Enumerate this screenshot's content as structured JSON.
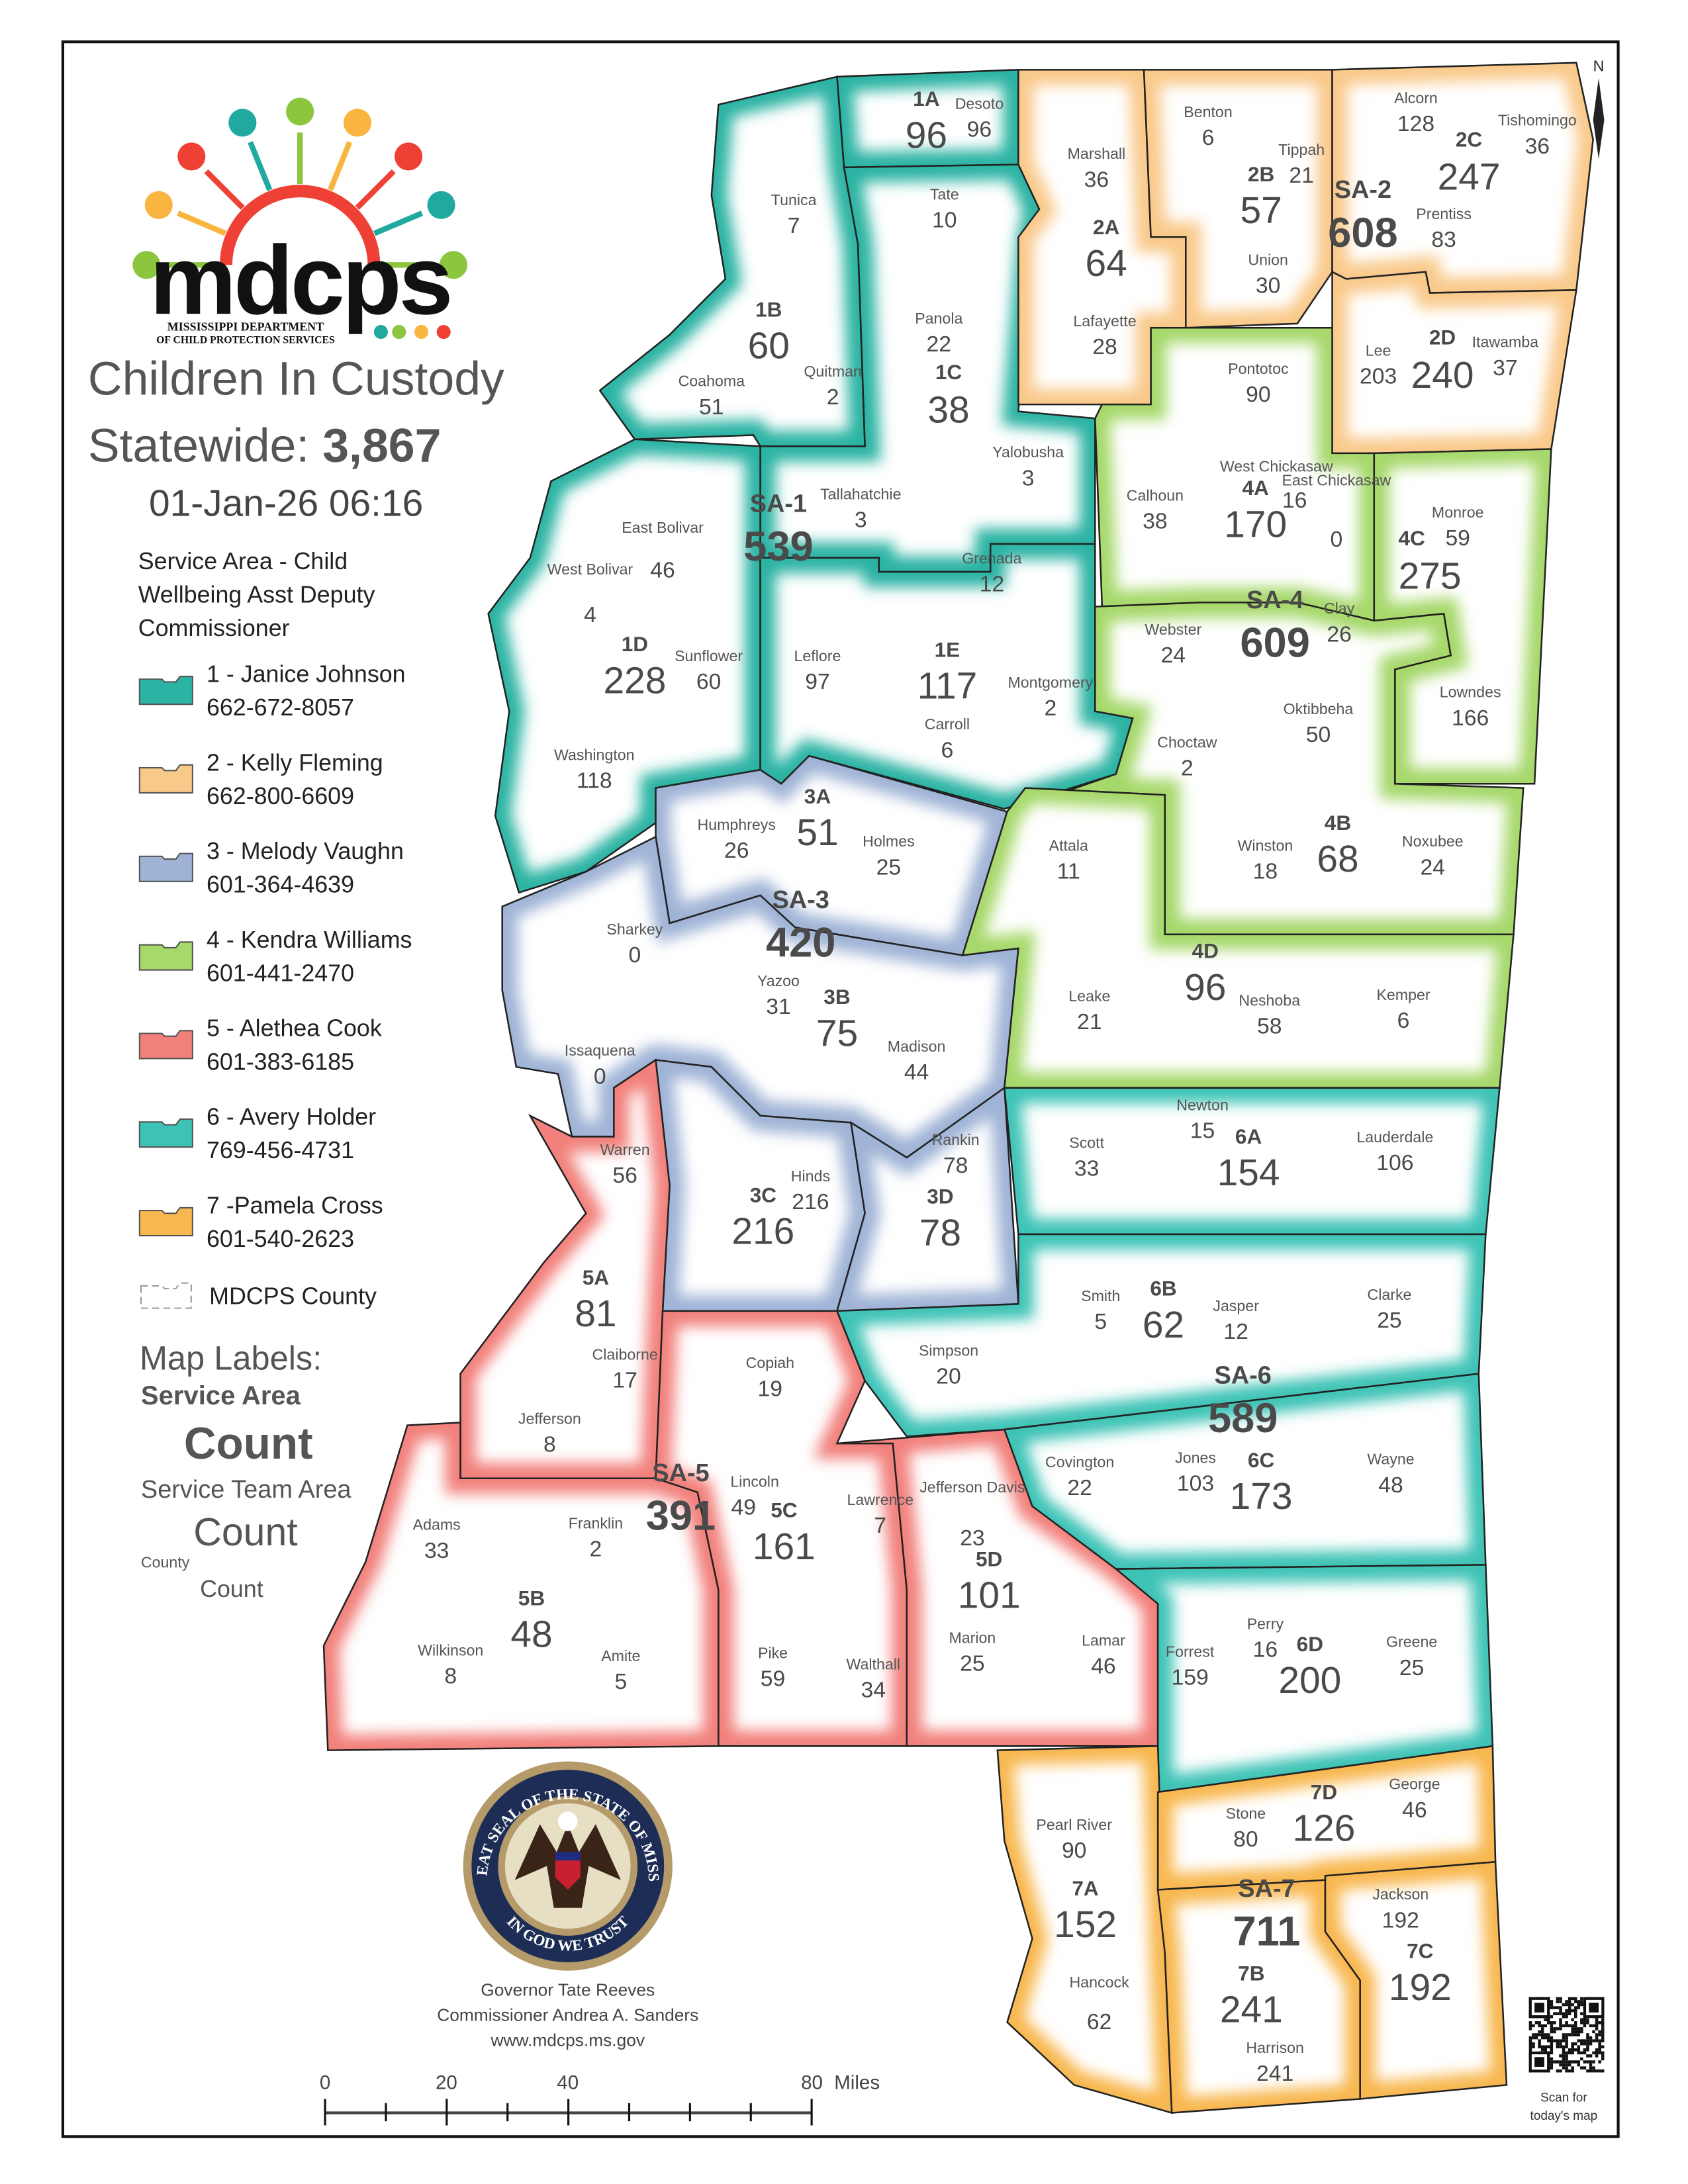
{
  "header": {
    "logo_text": "mdcps",
    "logo_subtitle_1": "MISSISSIPPI DEPARTMENT",
    "logo_subtitle_2": "OF CHILD PROTECTION SERVICES",
    "title": "Children In Custody",
    "statewide_label": "Statewide: ",
    "statewide_total": "3,867",
    "timestamp": "01-Jan-26 06:16"
  },
  "legend": {
    "heading_1": "Service Area - Child",
    "heading_2": "Wellbeing Asst Deputy",
    "heading_3": "Commissioner",
    "items": [
      {
        "label": "1 - Janice Johnson",
        "phone": "662-672-8057",
        "color": "#2bb3a3"
      },
      {
        "label": "2 - Kelly Fleming",
        "phone": "662-800-6609",
        "color": "#f9c98a"
      },
      {
        "label": "3 - Melody Vaughn",
        "phone": "601-364-4639",
        "color": "#9fb3d6"
      },
      {
        "label": "4 - Kendra Williams",
        "phone": "601-441-2470",
        "color": "#a6d86a"
      },
      {
        "label": "5 - Alethea Cook",
        "phone": "601-383-6185",
        "color": "#f2807b"
      },
      {
        "label": "6 - Avery Holder",
        "phone": "769-456-4731",
        "color": "#3cc3b6"
      },
      {
        "label": "7 -Pamela Cross",
        "phone": "601-540-2623",
        "color": "#f8b74f"
      }
    ],
    "county_label": "MDCPS County",
    "map_labels_heading": "Map Labels:",
    "service_area": "Service Area",
    "count_big": "Count",
    "service_team_area": "Service Team Area",
    "count_mid": "Count",
    "county": "County",
    "count_small": "Count"
  },
  "service_areas": [
    {
      "code": "SA-1",
      "count": "539"
    },
    {
      "code": "SA-2",
      "count": "608"
    },
    {
      "code": "SA-3",
      "count": "420"
    },
    {
      "code": "SA-4",
      "count": "609"
    },
    {
      "code": "SA-5",
      "count": "391"
    },
    {
      "code": "SA-6",
      "count": "589"
    },
    {
      "code": "SA-7",
      "count": "711"
    }
  ],
  "team_areas": [
    {
      "code": "1A",
      "count": "96",
      "sa": 0
    },
    {
      "code": "1B",
      "count": "60",
      "sa": 0
    },
    {
      "code": "1C",
      "count": "38",
      "sa": 0
    },
    {
      "code": "1D",
      "count": "228",
      "sa": 0
    },
    {
      "code": "1E",
      "count": "117",
      "sa": 0
    },
    {
      "code": "2A",
      "count": "64",
      "sa": 1
    },
    {
      "code": "2B",
      "count": "57",
      "sa": 1
    },
    {
      "code": "2C",
      "count": "247",
      "sa": 1
    },
    {
      "code": "2D",
      "count": "240",
      "sa": 1
    },
    {
      "code": "3A",
      "count": "51",
      "sa": 2
    },
    {
      "code": "3B",
      "count": "75",
      "sa": 2
    },
    {
      "code": "3C",
      "count": "216",
      "sa": 2
    },
    {
      "code": "3D",
      "count": "78",
      "sa": 2
    },
    {
      "code": "4A",
      "count": "170",
      "sa": 3
    },
    {
      "code": "4B",
      "count": "68",
      "sa": 3
    },
    {
      "code": "4C",
      "count": "275",
      "sa": 3
    },
    {
      "code": "4D",
      "count": "96",
      "sa": 3
    },
    {
      "code": "5A",
      "count": "81",
      "sa": 4
    },
    {
      "code": "5B",
      "count": "48",
      "sa": 4
    },
    {
      "code": "5C",
      "count": "161",
      "sa": 4
    },
    {
      "code": "5D",
      "count": "101",
      "sa": 4
    },
    {
      "code": "6A",
      "count": "154",
      "sa": 5
    },
    {
      "code": "6B",
      "count": "62",
      "sa": 5
    },
    {
      "code": "6C",
      "count": "173",
      "sa": 5
    },
    {
      "code": "6D",
      "count": "200",
      "sa": 5
    },
    {
      "code": "7A",
      "count": "152",
      "sa": 6
    },
    {
      "code": "7B",
      "count": "241",
      "sa": 6
    },
    {
      "code": "7C",
      "count": "192",
      "sa": 6
    },
    {
      "code": "7D",
      "count": "126",
      "sa": 6
    }
  ],
  "counties": [
    {
      "name": "Desoto",
      "count": "96"
    },
    {
      "name": "Tunica",
      "count": "7"
    },
    {
      "name": "Tate",
      "count": "10"
    },
    {
      "name": "Coahoma",
      "count": "51"
    },
    {
      "name": "Quitman",
      "count": "2"
    },
    {
      "name": "Panola",
      "count": "22"
    },
    {
      "name": "Tallahatchie",
      "count": "3"
    },
    {
      "name": "Yalobusha",
      "count": "3"
    },
    {
      "name": "East Bolivar",
      "count": "46"
    },
    {
      "name": "West Bolivar",
      "count": "4"
    },
    {
      "name": "Sunflower",
      "count": "60"
    },
    {
      "name": "Leflore",
      "count": "97"
    },
    {
      "name": "Washington",
      "count": "118"
    },
    {
      "name": "Grenada",
      "count": "12"
    },
    {
      "name": "Carroll",
      "count": "6"
    },
    {
      "name": "Montgomery",
      "count": "2"
    },
    {
      "name": "Marshall",
      "count": "36"
    },
    {
      "name": "Benton",
      "count": "6"
    },
    {
      "name": "Tippah",
      "count": "21"
    },
    {
      "name": "Alcorn",
      "count": "128"
    },
    {
      "name": "Tishomingo",
      "count": "36"
    },
    {
      "name": "Prentiss",
      "count": "83"
    },
    {
      "name": "Union",
      "count": "30"
    },
    {
      "name": "Lafayette",
      "count": "28"
    },
    {
      "name": "Pontotoc",
      "count": "90"
    },
    {
      "name": "Lee",
      "count": "203"
    },
    {
      "name": "Itawamba",
      "count": "37"
    },
    {
      "name": "Calhoun",
      "count": "38"
    },
    {
      "name": "West Chickasaw",
      "count": "16"
    },
    {
      "name": "East Chickasaw",
      "count": "0"
    },
    {
      "name": "Monroe",
      "count": "59"
    },
    {
      "name": "Webster",
      "count": "24"
    },
    {
      "name": "Clay",
      "count": "26"
    },
    {
      "name": "Oktibbeha",
      "count": "50"
    },
    {
      "name": "Lowndes",
      "count": "166"
    },
    {
      "name": "Choctaw",
      "count": "2"
    },
    {
      "name": "Attala",
      "count": "11"
    },
    {
      "name": "Winston",
      "count": "18"
    },
    {
      "name": "Noxubee",
      "count": "24"
    },
    {
      "name": "Leake",
      "count": "21"
    },
    {
      "name": "Neshoba",
      "count": "58"
    },
    {
      "name": "Kemper",
      "count": "6"
    },
    {
      "name": "Humphreys",
      "count": "26"
    },
    {
      "name": "Holmes",
      "count": "25"
    },
    {
      "name": "Sharkey",
      "count": "0"
    },
    {
      "name": "Yazoo",
      "count": "31"
    },
    {
      "name": "Madison",
      "count": "44"
    },
    {
      "name": "Issaquena",
      "count": "0"
    },
    {
      "name": "Rankin",
      "count": "78"
    },
    {
      "name": "Hinds",
      "count": "216"
    },
    {
      "name": "Scott",
      "count": "33"
    },
    {
      "name": "Newton",
      "count": "15"
    },
    {
      "name": "Lauderdale",
      "count": "106"
    },
    {
      "name": "Warren",
      "count": "56"
    },
    {
      "name": "Claiborne",
      "count": "17"
    },
    {
      "name": "Jefferson",
      "count": "8"
    },
    {
      "name": "Copiah",
      "count": "19"
    },
    {
      "name": "Simpson",
      "count": "20"
    },
    {
      "name": "Smith",
      "count": "5"
    },
    {
      "name": "Jasper",
      "count": "12"
    },
    {
      "name": "Clarke",
      "count": "25"
    },
    {
      "name": "Covington",
      "count": "22"
    },
    {
      "name": "Jones",
      "count": "103"
    },
    {
      "name": "Wayne",
      "count": "48"
    },
    {
      "name": "Adams",
      "count": "33"
    },
    {
      "name": "Franklin",
      "count": "2"
    },
    {
      "name": "Lincoln",
      "count": "49"
    },
    {
      "name": "Lawrence",
      "count": "7"
    },
    {
      "name": "Jefferson Davis",
      "count": "23"
    },
    {
      "name": "Marion",
      "count": "25"
    },
    {
      "name": "Lamar",
      "count": "46"
    },
    {
      "name": "Forrest",
      "count": "159"
    },
    {
      "name": "Perry",
      "count": "16"
    },
    {
      "name": "Greene",
      "count": "25"
    },
    {
      "name": "Wilkinson",
      "count": "8"
    },
    {
      "name": "Amite",
      "count": "5"
    },
    {
      "name": "Pike",
      "count": "59"
    },
    {
      "name": "Walthall",
      "count": "34"
    },
    {
      "name": "Pearl River",
      "count": "90"
    },
    {
      "name": "Hancock",
      "count": "62"
    },
    {
      "name": "Stone",
      "count": "80"
    },
    {
      "name": "George",
      "count": "46"
    },
    {
      "name": "Jackson",
      "count": "192"
    },
    {
      "name": "Harrison",
      "count": "241"
    }
  ],
  "seal": {
    "ring_text_top": "THE GREAT SEAL OF THE STATE OF MISSISSIPPI",
    "ring_text_bottom": "IN GOD WE TRUST"
  },
  "footer": {
    "governor": "Governor Tate Reeves",
    "commissioner": "Commissioner Andrea A. Sanders",
    "website": "www.mdcps.ms.gov",
    "qr_caption_1": "Scan for",
    "qr_caption_2": "today's map"
  },
  "scale_bar": {
    "ticks": [
      "0",
      "20",
      "40",
      "80"
    ],
    "unit": "Miles"
  },
  "north_label": "N"
}
